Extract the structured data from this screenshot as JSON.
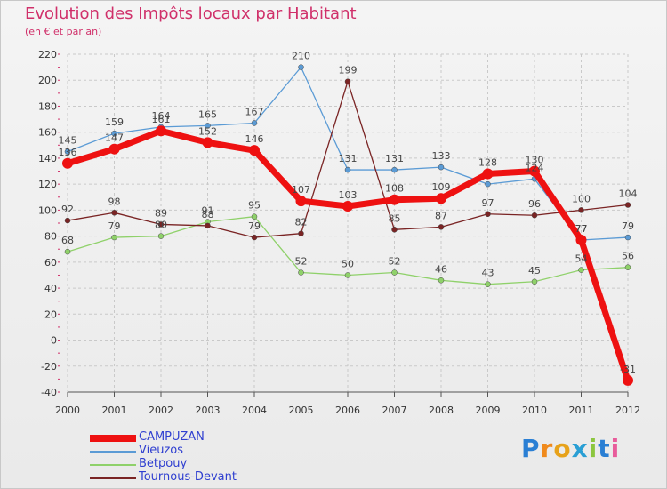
{
  "title": "Evolution des Impôts locaux par Habitant",
  "subtitle": "(en € et par an)",
  "brand": "Proxiti",
  "chart_data": {
    "type": "line",
    "title": "Evolution des Impôts locaux par Habitant",
    "subtitle": "(en € et par an)",
    "xlabel": "",
    "ylabel": "",
    "categories": [
      "2000",
      "2001",
      "2002",
      "2003",
      "2004",
      "2005",
      "2006",
      "2007",
      "2008",
      "2009",
      "2010",
      "2011",
      "2012"
    ],
    "ylim": [
      -40,
      220
    ],
    "yticks": [
      -40,
      -20,
      0,
      20,
      40,
      60,
      80,
      100,
      120,
      140,
      160,
      180,
      200,
      220
    ],
    "grid": "horizontal dashed",
    "legend_position": "bottom-left",
    "series": [
      {
        "name": "Vieuzos",
        "color": "#5b9bd5",
        "values": [
          145,
          159,
          164,
          165,
          167,
          210,
          131,
          131,
          133,
          120,
          124,
          77,
          79
        ]
      },
      {
        "name": "Betpouy",
        "color": "#8fd16a",
        "values": [
          68,
          79,
          80,
          91,
          95,
          52,
          50,
          52,
          46,
          43,
          45,
          54,
          56
        ]
      },
      {
        "name": "Tournous-Devant",
        "color": "#7a2424",
        "values": [
          92,
          98,
          89,
          88,
          79,
          82,
          199,
          85,
          87,
          97,
          96,
          100,
          104
        ]
      },
      {
        "name": "CAMPUZAN",
        "color": "#ee1111",
        "values": [
          136,
          147,
          161,
          152,
          146,
          107,
          103,
          108,
          109,
          128,
          130,
          77,
          -31
        ]
      }
    ],
    "labels": {
      "Vieuzos": [
        "145",
        "159",
        "164",
        "165",
        "167",
        "210",
        "131",
        "131",
        "133",
        "",
        "124",
        "77",
        "79"
      ],
      "Betpouy": [
        "68",
        "79",
        "80",
        "91",
        "95",
        "52",
        "50",
        "52",
        "46",
        "43",
        "45",
        "54",
        "56"
      ],
      "Tournous-Devant": [
        "92",
        "98",
        "89",
        "88",
        "79",
        "82",
        "199",
        "85",
        "87",
        "97",
        "96",
        "100",
        "104"
      ],
      "CAMPUZAN": [
        "136",
        "147",
        "161",
        "152",
        "146",
        "107",
        "103",
        "108",
        "109",
        "128",
        "130",
        "77",
        "-31"
      ]
    }
  },
  "legend": [
    {
      "name": "CAMPUZAN",
      "color": "#ee1111",
      "width": 7
    },
    {
      "name": "Vieuzos",
      "color": "#5b9bd5",
      "width": 2
    },
    {
      "name": "Betpouy",
      "color": "#8fd16a",
      "width": 2
    },
    {
      "name": "Tournous-Devant",
      "color": "#7a2424",
      "width": 2
    }
  ]
}
